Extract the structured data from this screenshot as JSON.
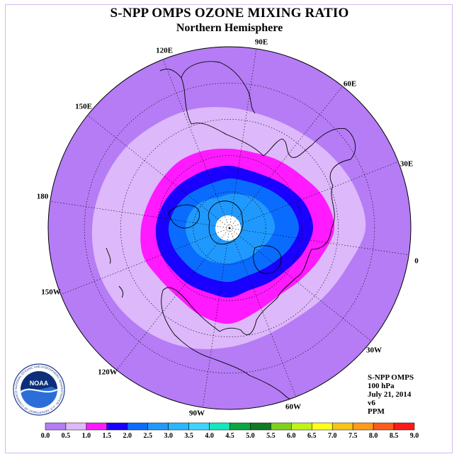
{
  "title": "S-NPP OMPS OZONE MIXING RATIO",
  "subtitle": "Northern Hemisphere",
  "longitude_labels": [
    "90E",
    "60E",
    "30E",
    "0",
    "30W",
    "60W",
    "90W",
    "120W",
    "150W",
    "180",
    "150E",
    "120E"
  ],
  "info": {
    "product": "S-NPP OMPS",
    "level": "100 hPa",
    "date": "July 21, 2014",
    "version": "v6",
    "units": "PPM"
  },
  "logo": {
    "text": "NOAA",
    "ring_text": "NATIONAL OCEANIC AND ATMOSPHERIC ADMINISTRATION · U.S. DEPARTMENT OF COMMERCE"
  },
  "colorbar": {
    "ticks": [
      "0.0",
      "0.5",
      "1.0",
      "1.5",
      "2.0",
      "2.5",
      "3.0",
      "3.5",
      "4.0",
      "4.5",
      "5.0",
      "5.5",
      "6.0",
      "6.5",
      "7.0",
      "7.5",
      "8.0",
      "8.5",
      "9.0"
    ],
    "colors": [
      "#b57cf5",
      "#ddb8fa",
      "#ff1aff",
      "#1a00ff",
      "#0a6cff",
      "#2099ff",
      "#27b8ff",
      "#3dd3ff",
      "#13e8bd",
      "#0aa63f",
      "#0f7a24",
      "#7fd11a",
      "#bff31a",
      "#ffff1a",
      "#f6c41a",
      "#ff9a1a",
      "#ff5a1a",
      "#ff1a1a",
      "#8a5a42"
    ]
  },
  "field": {
    "levels": [
      0.5,
      1.0,
      1.5,
      2.0,
      2.5
    ],
    "fill_colors": {
      "outer": "#b57cf5",
      "0.5": "#ddb8fa",
      "1.0": "#ff1aff",
      "1.5": "#1a00ff",
      "2.0": "#0a6cff",
      "2.5": "#2099ff"
    }
  }
}
